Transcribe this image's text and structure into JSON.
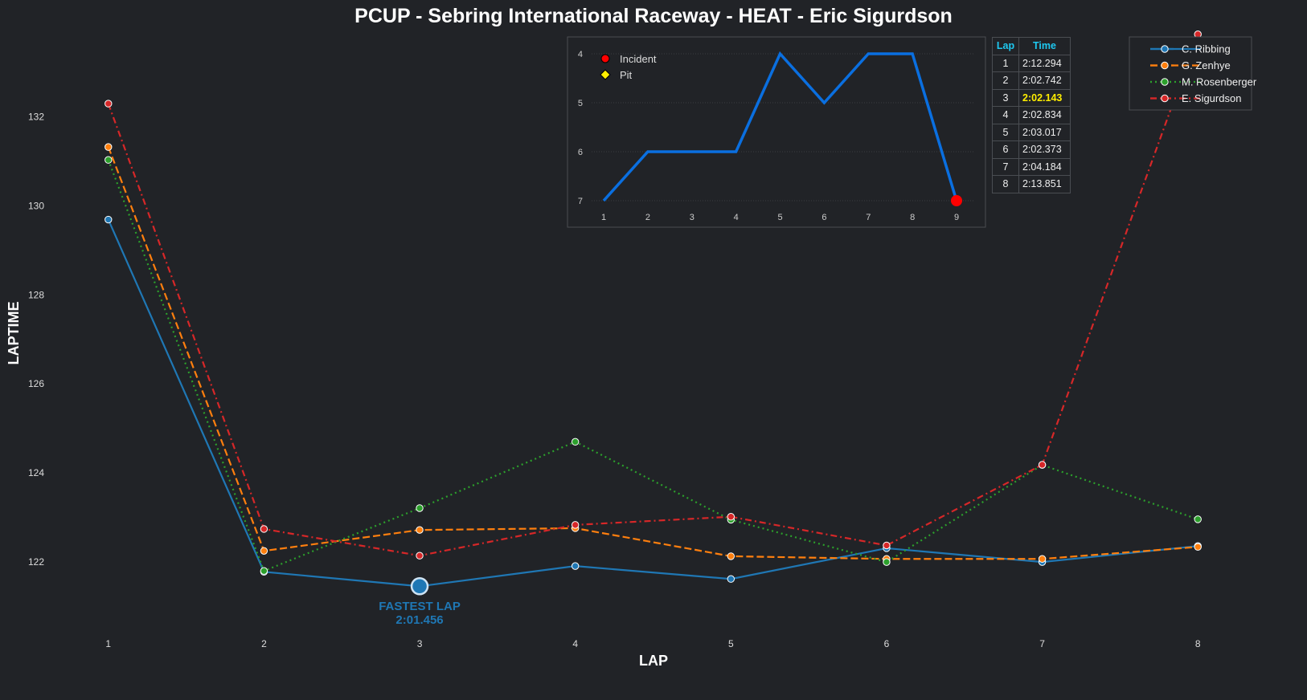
{
  "chart_data": [
    {
      "type": "line",
      "title": "PCUP - Sebring International Raceway - HEAT - Eric Sigurdson",
      "xlabel": "LAP",
      "ylabel": "LAPTIME",
      "x": [
        1,
        2,
        3,
        4,
        5,
        6,
        7,
        8
      ],
      "xlim": [
        0.65,
        8.35
      ],
      "ylim": [
        120.38,
        133.9
      ],
      "yticks": [
        122,
        124,
        126,
        128,
        130,
        132
      ],
      "grid": false,
      "legend": "top-right",
      "series": [
        {
          "name": "C. Ribbing",
          "color": "#1f77b4",
          "style": "solid",
          "values": [
            129.69,
            121.78,
            121.456,
            121.91,
            121.62,
            122.31,
            122.0,
            122.36
          ]
        },
        {
          "name": "G. Zenhye",
          "color": "#ff7f0e",
          "style": "dashed",
          "values": [
            131.32,
            122.25,
            122.72,
            122.76,
            122.13,
            122.07,
            122.07,
            122.34
          ]
        },
        {
          "name": "M. Rosenberger",
          "color": "#2ca02c",
          "style": "dotted",
          "values": [
            131.03,
            121.8,
            123.21,
            124.7,
            122.95,
            122.0,
            124.18,
            122.96
          ]
        },
        {
          "name": "E. Sigurdson",
          "color": "#d62728",
          "style": "dashdot",
          "values": [
            132.294,
            122.742,
            122.143,
            122.834,
            123.017,
            122.373,
            124.184,
            133.851
          ]
        }
      ],
      "annotation": {
        "lap": 3,
        "series": "C. Ribbing",
        "label": "FASTEST LAP",
        "value": "2:01.456"
      }
    },
    {
      "type": "line",
      "x": [
        1,
        2,
        3,
        4,
        5,
        6,
        7,
        8,
        9
      ],
      "values": [
        7,
        6,
        6,
        6,
        4,
        5,
        4,
        4,
        7
      ],
      "yticks": [
        4,
        5,
        6,
        7
      ],
      "y_inverted": true,
      "color": "#0a6fe0",
      "legend": "top-left",
      "legend_entries": [
        {
          "label": "Incident",
          "color": "#ff0000",
          "marker": "circle"
        },
        {
          "label": "Pit",
          "color": "#ffee00",
          "marker": "diamond"
        }
      ],
      "incidents": [
        9
      ],
      "pits": []
    }
  ],
  "table": {
    "headers": [
      "Lap",
      "Time"
    ],
    "rows": [
      [
        "1",
        "2:12.294"
      ],
      [
        "2",
        "2:02.742"
      ],
      [
        "3",
        "2:02.143"
      ],
      [
        "4",
        "2:02.834"
      ],
      [
        "5",
        "2:03.017"
      ],
      [
        "6",
        "2:02.373"
      ],
      [
        "7",
        "2:04.184"
      ],
      [
        "8",
        "2:13.851"
      ]
    ],
    "best_row": 2,
    "best_color": "#ffee00"
  }
}
